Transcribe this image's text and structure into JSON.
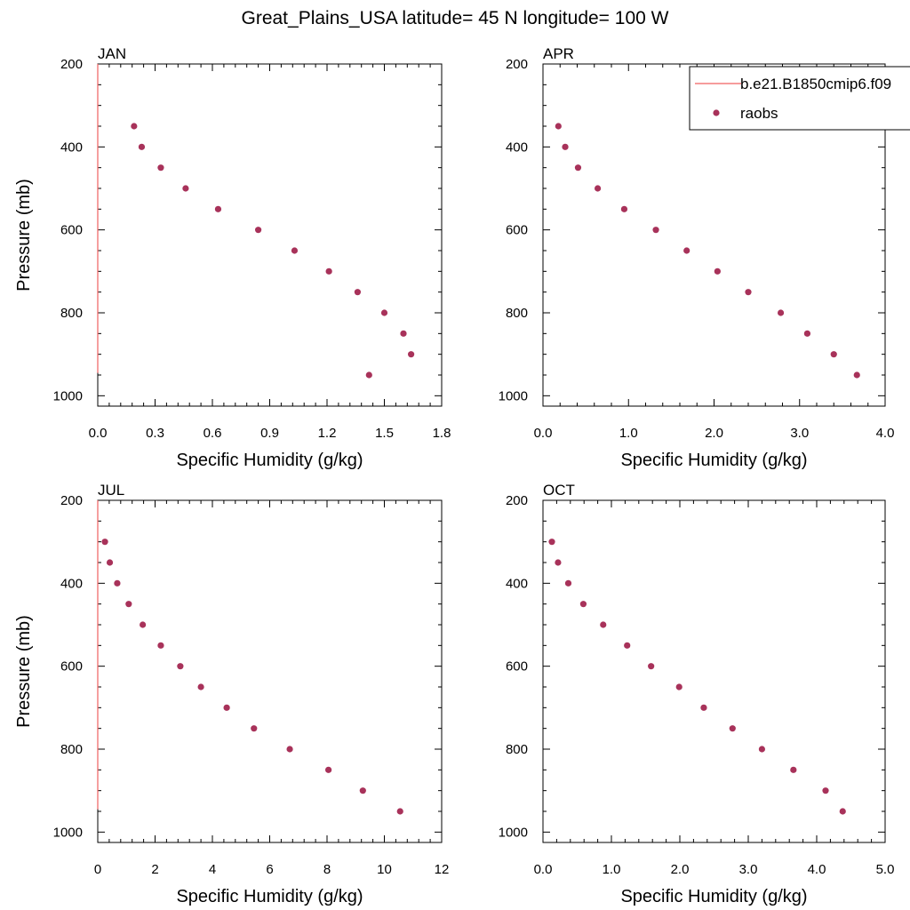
{
  "title": "Great_Plains_USA  latitude= 45 N longitude= 100 W",
  "colors": {
    "model_line": "#f06060",
    "raobs_marker": "#a8325a",
    "axes": "#000000"
  },
  "legend": {
    "placement": "top-right of APR panel",
    "entries": [
      {
        "label": "b.e21.B1850cmip6.f09",
        "symbol": "line"
      },
      {
        "label": "raobs",
        "symbol": "marker"
      }
    ]
  },
  "chart_data": [
    {
      "type": "scatter",
      "panel": "JAN",
      "xlabel": "Specific Humidity (g/kg)",
      "ylabel": "Pressure (mb)",
      "xlim": [
        0,
        1.8
      ],
      "ylim": [
        1025,
        200
      ],
      "y_reversed": true,
      "xticks": [
        "0.0",
        "0.3",
        "0.6",
        "0.9",
        "1.2",
        "1.5",
        "1.8"
      ],
      "yticks": [
        "200",
        "400",
        "600",
        "800",
        "1000"
      ],
      "series": [
        {
          "name": "raobs",
          "x": [
            0.19,
            0.23,
            0.33,
            0.46,
            0.63,
            0.84,
            1.03,
            1.21,
            1.36,
            1.5,
            1.6,
            1.64,
            1.42
          ],
          "y": [
            350,
            400,
            450,
            500,
            550,
            600,
            650,
            700,
            750,
            800,
            850,
            900,
            950
          ]
        },
        {
          "name": "b.e21.B1850cmip6.f09",
          "x": [
            0.0,
            0.0
          ],
          "y": [
            200,
            945
          ]
        }
      ]
    },
    {
      "type": "scatter",
      "panel": "APR",
      "xlabel": "Specific Humidity (g/kg)",
      "ylabel": "",
      "xlim": [
        0,
        4.0
      ],
      "ylim": [
        1025,
        200
      ],
      "y_reversed": true,
      "xticks": [
        "0.0",
        "1.0",
        "2.0",
        "3.0",
        "4.0"
      ],
      "yticks": [
        "200",
        "400",
        "600",
        "800",
        "1000"
      ],
      "series": [
        {
          "name": "raobs",
          "x": [
            0.18,
            0.26,
            0.41,
            0.64,
            0.95,
            1.32,
            1.68,
            2.04,
            2.4,
            2.78,
            3.09,
            3.4,
            3.67
          ],
          "y": [
            350,
            400,
            450,
            500,
            550,
            600,
            650,
            700,
            750,
            800,
            850,
            900,
            950
          ]
        }
      ]
    },
    {
      "type": "scatter",
      "panel": "JUL",
      "xlabel": "Specific Humidity (g/kg)",
      "ylabel": "Pressure (mb)",
      "xlim": [
        0,
        12
      ],
      "ylim": [
        1025,
        200
      ],
      "y_reversed": true,
      "xticks": [
        "0",
        "2",
        "4",
        "6",
        "8",
        "10",
        "12"
      ],
      "yticks": [
        "200",
        "400",
        "600",
        "800",
        "1000"
      ],
      "series": [
        {
          "name": "raobs",
          "x": [
            0.25,
            0.42,
            0.68,
            1.08,
            1.57,
            2.2,
            2.88,
            3.6,
            4.5,
            5.45,
            6.7,
            8.05,
            9.25,
            10.55
          ],
          "y": [
            300,
            350,
            400,
            450,
            500,
            550,
            600,
            650,
            700,
            750,
            800,
            850,
            900,
            950
          ]
        },
        {
          "name": "b.e21.B1850cmip6.f09",
          "x": [
            0.0,
            0.0
          ],
          "y": [
            200,
            945
          ]
        }
      ]
    },
    {
      "type": "scatter",
      "panel": "OCT",
      "xlabel": "Specific Humidity (g/kg)",
      "ylabel": "",
      "xlim": [
        0,
        5.0
      ],
      "ylim": [
        1025,
        200
      ],
      "y_reversed": true,
      "xticks": [
        "0.0",
        "1.0",
        "2.0",
        "3.0",
        "4.0",
        "5.0"
      ],
      "yticks": [
        "200",
        "400",
        "600",
        "800",
        "1000"
      ],
      "series": [
        {
          "name": "raobs",
          "x": [
            0.13,
            0.22,
            0.37,
            0.59,
            0.88,
            1.23,
            1.58,
            1.99,
            2.35,
            2.77,
            3.2,
            3.66,
            4.13,
            4.38
          ],
          "y": [
            300,
            350,
            400,
            450,
            500,
            550,
            600,
            650,
            700,
            750,
            800,
            850,
            900,
            950
          ]
        }
      ]
    }
  ]
}
